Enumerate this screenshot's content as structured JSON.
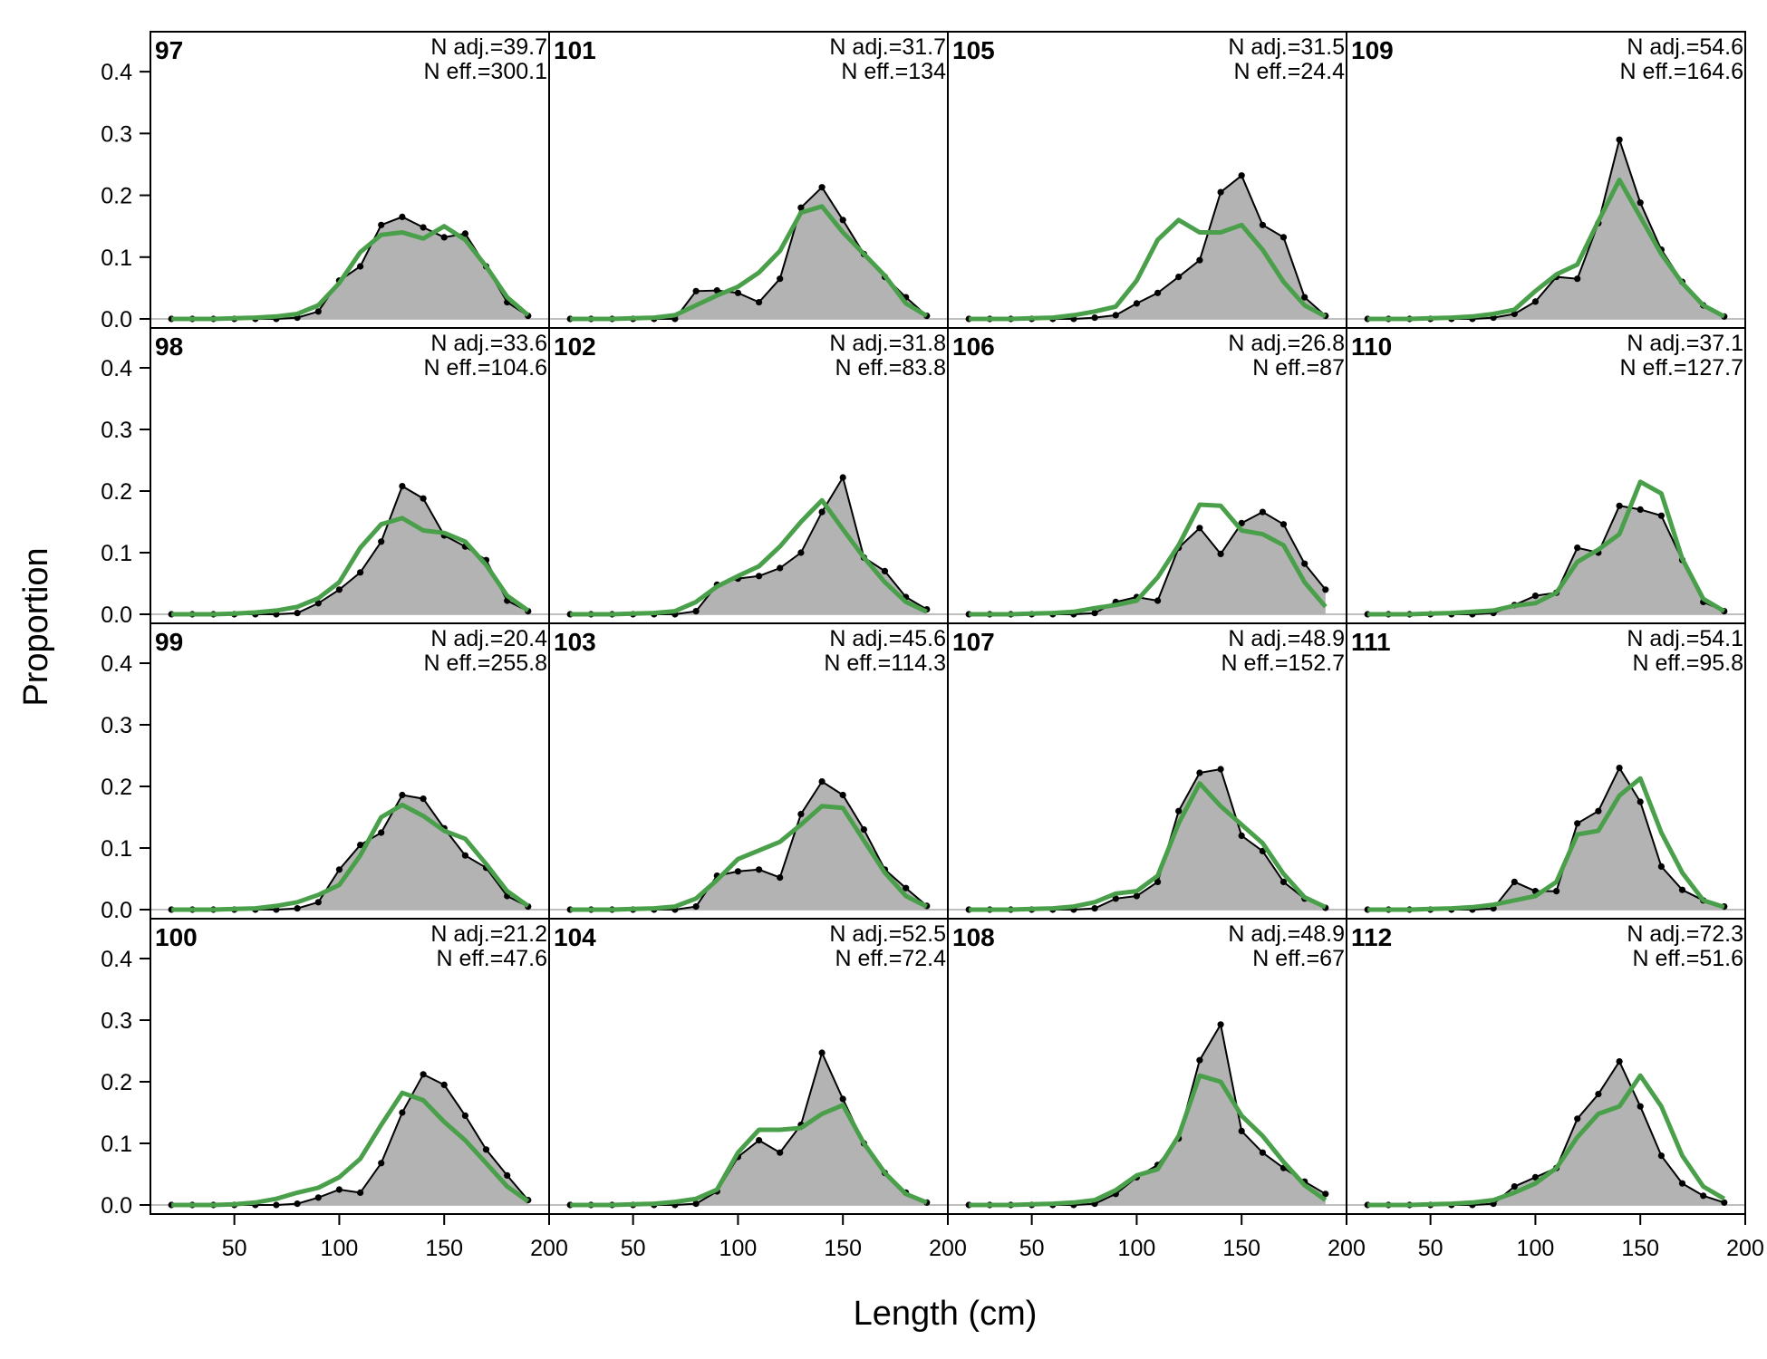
{
  "figure": {
    "xlabel": "Length (cm)",
    "ylabel": "Proportion"
  },
  "colors": {
    "observed_fill": "#b3b3b3",
    "observed_line": "#000000",
    "expected_line": "#4aa04a",
    "zero_line": "#bebebe",
    "frame": "#000000"
  },
  "chart_data": {
    "type": "area",
    "layout": "4x4 panel grid, column-major",
    "grid": false,
    "xlim": [
      10,
      200
    ],
    "ylim": [
      0,
      0.45
    ],
    "x_ticks": [
      50,
      100,
      150,
      200
    ],
    "y_ticks": [
      0.0,
      0.1,
      0.2,
      0.3,
      0.4
    ],
    "y_tick_labels": [
      "0.0",
      "0.1",
      "0.2",
      "0.3",
      "0.4"
    ],
    "x": [
      20,
      30,
      40,
      50,
      60,
      70,
      80,
      90,
      100,
      110,
      120,
      130,
      140,
      150,
      160,
      170,
      180,
      190
    ],
    "series_styles": {
      "observed": "grey filled polygon, black line with points",
      "expected": "green line"
    },
    "panels": [
      {
        "label": "97",
        "n_adj": "N adj.=39.7",
        "n_eff": "N eff.=300.1",
        "observed": [
          0,
          0,
          0,
          0,
          0,
          0,
          0.002,
          0.012,
          0.062,
          0.085,
          0.152,
          0.165,
          0.148,
          0.132,
          0.138,
          0.085,
          0.027,
          0.005
        ],
        "expected": [
          0,
          0,
          0,
          0.001,
          0.002,
          0.004,
          0.008,
          0.022,
          0.058,
          0.108,
          0.136,
          0.14,
          0.13,
          0.15,
          0.128,
          0.085,
          0.035,
          0.006
        ]
      },
      {
        "label": "98",
        "n_adj": "N adj.=33.6",
        "n_eff": "N eff.=104.6",
        "observed": [
          0,
          0,
          0,
          0,
          0,
          0,
          0.002,
          0.018,
          0.04,
          0.068,
          0.118,
          0.208,
          0.188,
          0.128,
          0.11,
          0.088,
          0.022,
          0.005
        ],
        "expected": [
          0,
          0,
          0,
          0.001,
          0.003,
          0.006,
          0.012,
          0.026,
          0.052,
          0.108,
          0.146,
          0.156,
          0.136,
          0.132,
          0.118,
          0.08,
          0.03,
          0.006
        ]
      },
      {
        "label": "99",
        "n_adj": "N adj.=20.4",
        "n_eff": "N eff.=255.8",
        "observed": [
          0,
          0,
          0,
          0,
          0,
          0,
          0.002,
          0.012,
          0.065,
          0.105,
          0.125,
          0.186,
          0.18,
          0.132,
          0.088,
          0.068,
          0.022,
          0.005
        ],
        "expected": [
          0,
          0,
          0,
          0.001,
          0.002,
          0.006,
          0.012,
          0.024,
          0.04,
          0.088,
          0.15,
          0.17,
          0.152,
          0.128,
          0.115,
          0.074,
          0.03,
          0.006
        ]
      },
      {
        "label": "100",
        "n_adj": "N adj.=21.2",
        "n_eff": "N eff.=47.6",
        "observed": [
          0,
          0,
          0,
          0,
          0,
          0,
          0.002,
          0.012,
          0.025,
          0.02,
          0.068,
          0.15,
          0.212,
          0.195,
          0.145,
          0.09,
          0.048,
          0.008
        ],
        "expected": [
          0,
          0,
          0,
          0.001,
          0.004,
          0.01,
          0.02,
          0.028,
          0.045,
          0.075,
          0.13,
          0.182,
          0.17,
          0.135,
          0.105,
          0.068,
          0.03,
          0.006
        ]
      },
      {
        "label": "101",
        "n_adj": "N adj.=31.7",
        "n_eff": "N eff.=134",
        "observed": [
          0,
          0,
          0,
          0,
          0,
          0,
          0.045,
          0.046,
          0.042,
          0.027,
          0.065,
          0.18,
          0.213,
          0.16,
          0.105,
          0.068,
          0.035,
          0.005
        ],
        "expected": [
          0,
          0,
          0,
          0.001,
          0.002,
          0.006,
          0.022,
          0.038,
          0.052,
          0.075,
          0.11,
          0.172,
          0.182,
          0.14,
          0.105,
          0.07,
          0.025,
          0.005
        ]
      },
      {
        "label": "102",
        "n_adj": "N adj.=31.8",
        "n_eff": "N eff.=83.8",
        "observed": [
          0,
          0,
          0,
          0,
          0,
          0,
          0.005,
          0.048,
          0.058,
          0.062,
          0.075,
          0.1,
          0.166,
          0.222,
          0.092,
          0.07,
          0.028,
          0.008
        ],
        "expected": [
          0,
          0,
          0,
          0.001,
          0.002,
          0.005,
          0.02,
          0.045,
          0.062,
          0.078,
          0.11,
          0.15,
          0.185,
          0.138,
          0.092,
          0.052,
          0.02,
          0.004
        ]
      },
      {
        "label": "103",
        "n_adj": "N adj.=45.6",
        "n_eff": "N eff.=114.3",
        "observed": [
          0,
          0,
          0,
          0,
          0,
          0,
          0.005,
          0.055,
          0.062,
          0.065,
          0.052,
          0.155,
          0.208,
          0.186,
          0.13,
          0.065,
          0.035,
          0.006
        ],
        "expected": [
          0,
          0,
          0,
          0.001,
          0.002,
          0.005,
          0.018,
          0.048,
          0.082,
          0.096,
          0.11,
          0.138,
          0.168,
          0.165,
          0.112,
          0.06,
          0.022,
          0.005
        ]
      },
      {
        "label": "104",
        "n_adj": "N adj.=52.5",
        "n_eff": "N eff.=72.4",
        "observed": [
          0,
          0,
          0,
          0,
          0,
          0,
          0.002,
          0.022,
          0.078,
          0.105,
          0.085,
          0.13,
          0.247,
          0.172,
          0.1,
          0.052,
          0.02,
          0.004
        ],
        "expected": [
          0,
          0,
          0,
          0.001,
          0.002,
          0.005,
          0.01,
          0.025,
          0.085,
          0.122,
          0.122,
          0.125,
          0.148,
          0.162,
          0.1,
          0.052,
          0.018,
          0.004
        ]
      },
      {
        "label": "105",
        "n_adj": "N adj.=31.5",
        "n_eff": "N eff.=24.4",
        "observed": [
          0,
          0,
          0,
          0,
          0,
          0,
          0.002,
          0.006,
          0.025,
          0.042,
          0.068,
          0.095,
          0.205,
          0.232,
          0.152,
          0.132,
          0.035,
          0.005
        ],
        "expected": [
          0,
          0,
          0,
          0.001,
          0.002,
          0.006,
          0.012,
          0.02,
          0.062,
          0.128,
          0.16,
          0.14,
          0.14,
          0.152,
          0.112,
          0.06,
          0.022,
          0.004
        ]
      },
      {
        "label": "106",
        "n_adj": "N adj.=26.8",
        "n_eff": "N eff.=87",
        "observed": [
          0,
          0,
          0,
          0,
          0,
          0,
          0.002,
          0.02,
          0.028,
          0.022,
          0.108,
          0.14,
          0.098,
          0.148,
          0.166,
          0.146,
          0.082,
          0.04
        ],
        "expected": [
          0,
          0,
          0,
          0.001,
          0.002,
          0.004,
          0.01,
          0.015,
          0.022,
          0.06,
          0.112,
          0.178,
          0.176,
          0.136,
          0.13,
          0.112,
          0.052,
          0.012
        ]
      },
      {
        "label": "107",
        "n_adj": "N adj.=48.9",
        "n_eff": "N eff.=152.7",
        "observed": [
          0,
          0,
          0,
          0,
          0,
          0,
          0.002,
          0.018,
          0.022,
          0.045,
          0.16,
          0.222,
          0.228,
          0.12,
          0.095,
          0.045,
          0.018,
          0.003
        ],
        "expected": [
          0,
          0,
          0,
          0.001,
          0.002,
          0.005,
          0.012,
          0.026,
          0.03,
          0.055,
          0.14,
          0.205,
          0.168,
          0.138,
          0.108,
          0.058,
          0.02,
          0.004
        ]
      },
      {
        "label": "108",
        "n_adj": "N adj.=48.9",
        "n_eff": "N eff.=67",
        "observed": [
          0,
          0,
          0,
          0,
          0,
          0,
          0.002,
          0.018,
          0.045,
          0.065,
          0.108,
          0.235,
          0.293,
          0.12,
          0.085,
          0.06,
          0.038,
          0.018
        ],
        "expected": [
          0,
          0,
          0,
          0.001,
          0.002,
          0.004,
          0.008,
          0.024,
          0.048,
          0.058,
          0.112,
          0.21,
          0.2,
          0.145,
          0.112,
          0.07,
          0.032,
          0.008
        ]
      },
      {
        "label": "109",
        "n_adj": "N adj.=54.6",
        "n_eff": "N eff.=164.6",
        "observed": [
          0,
          0,
          0,
          0,
          0,
          0,
          0.002,
          0.008,
          0.028,
          0.068,
          0.065,
          0.155,
          0.29,
          0.188,
          0.112,
          0.06,
          0.022,
          0.004
        ],
        "expected": [
          0,
          0,
          0,
          0.001,
          0.002,
          0.004,
          0.008,
          0.015,
          0.045,
          0.072,
          0.088,
          0.158,
          0.225,
          0.165,
          0.105,
          0.058,
          0.022,
          0.004
        ]
      },
      {
        "label": "110",
        "n_adj": "N adj.=37.1",
        "n_eff": "N eff.=127.7",
        "observed": [
          0,
          0,
          0,
          0,
          0,
          0,
          0.002,
          0.015,
          0.03,
          0.035,
          0.108,
          0.1,
          0.176,
          0.17,
          0.16,
          0.088,
          0.02,
          0.005
        ],
        "expected": [
          0,
          0,
          0,
          0.001,
          0.002,
          0.004,
          0.006,
          0.014,
          0.018,
          0.035,
          0.085,
          0.105,
          0.13,
          0.215,
          0.196,
          0.09,
          0.025,
          0.005
        ]
      },
      {
        "label": "111",
        "n_adj": "N adj.=54.1",
        "n_eff": "N eff.=95.8",
        "observed": [
          0,
          0,
          0,
          0,
          0,
          0,
          0.002,
          0.045,
          0.03,
          0.03,
          0.14,
          0.16,
          0.23,
          0.175,
          0.07,
          0.032,
          0.015,
          0.005
        ],
        "expected": [
          0,
          0,
          0,
          0.001,
          0.002,
          0.004,
          0.008,
          0.015,
          0.022,
          0.045,
          0.122,
          0.128,
          0.185,
          0.213,
          0.125,
          0.06,
          0.015,
          0.004
        ]
      },
      {
        "label": "112",
        "n_adj": "N adj.=72.3",
        "n_eff": "N eff.=51.6",
        "observed": [
          0,
          0,
          0,
          0,
          0,
          0,
          0.002,
          0.03,
          0.045,
          0.06,
          0.14,
          0.18,
          0.233,
          0.16,
          0.08,
          0.035,
          0.015,
          0.004
        ],
        "expected": [
          0,
          0,
          0,
          0.001,
          0.002,
          0.004,
          0.008,
          0.02,
          0.035,
          0.06,
          0.11,
          0.148,
          0.16,
          0.21,
          0.16,
          0.08,
          0.03,
          0.01
        ]
      }
    ]
  }
}
